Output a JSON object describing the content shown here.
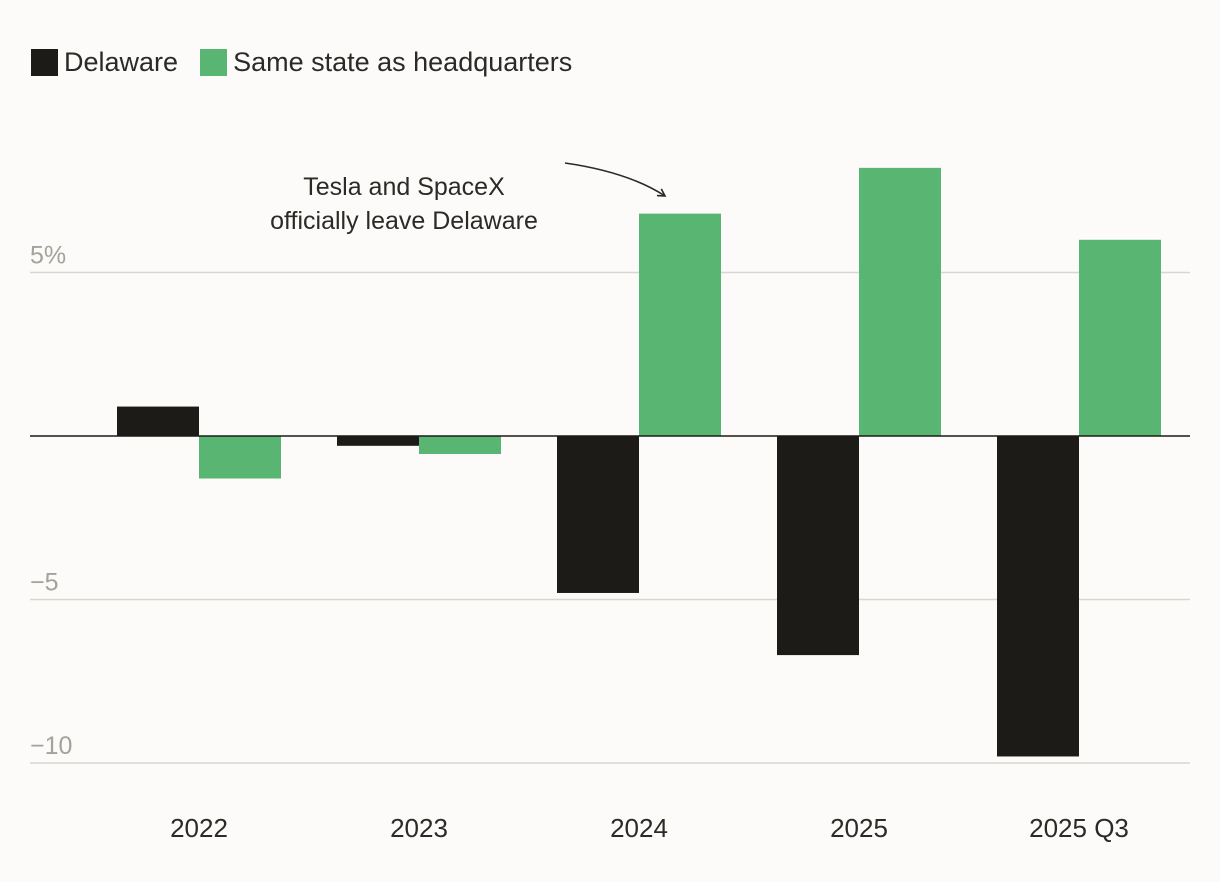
{
  "chart_data": {
    "type": "bar",
    "categories": [
      "2022",
      "2023",
      "2024",
      "2025",
      "2025 Q3"
    ],
    "series": [
      {
        "name": "Delaware",
        "color": "#1c1b17",
        "values": [
          0.9,
          -0.3,
          -4.8,
          -6.7,
          -9.8
        ]
      },
      {
        "name": "Same state as headquarters",
        "color": "#58b672",
        "values": [
          -1.3,
          -0.55,
          6.8,
          8.2,
          6.0
        ]
      }
    ],
    "ylim": [
      -10,
      10
    ],
    "yticks": [
      {
        "value": 5,
        "label": "5%"
      },
      {
        "value": -5,
        "label": "−5"
      },
      {
        "value": -10,
        "label": "−10"
      }
    ],
    "grid": true,
    "legend_position": "top-left",
    "annotation": {
      "lines": [
        "Tesla and SpaceX",
        "officially leave Delaware"
      ],
      "category": "2024",
      "series": "Same state as headquarters"
    }
  }
}
